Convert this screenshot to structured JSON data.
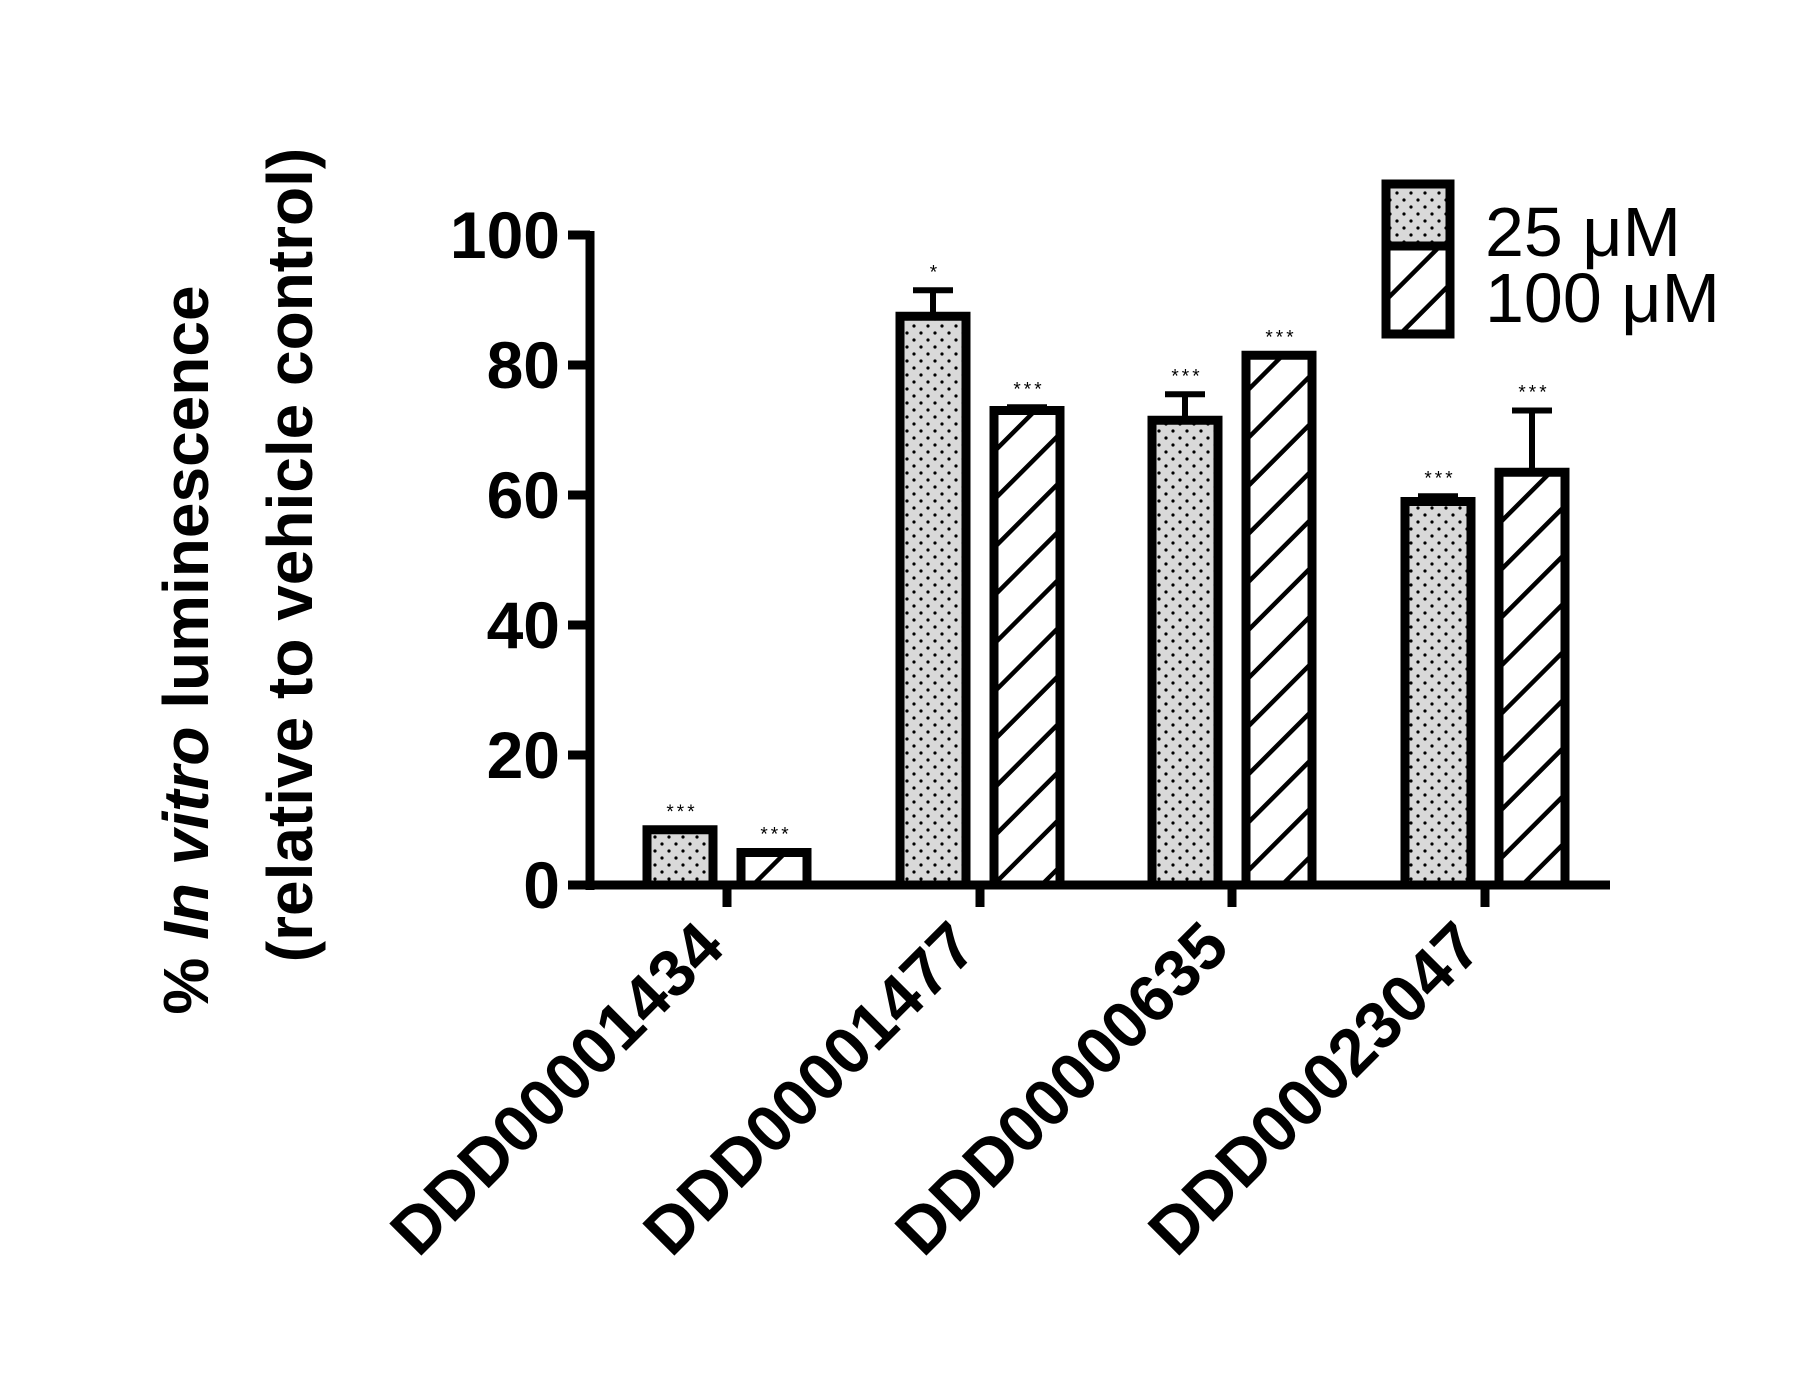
{
  "chart_data": {
    "type": "bar",
    "title": "",
    "ylabel_prefix": "% ",
    "ylabel_italic": "In vitro",
    "ylabel_suffix": " luminescence",
    "ylabel_line2": "(relative to vehicle control)",
    "xlabel": "",
    "ylim": [
      0,
      100
    ],
    "yticks": [
      "0",
      "20",
      "40",
      "60",
      "80",
      "100"
    ],
    "categories": [
      "DDD00001434",
      "DDD00001477",
      "DDD00000635",
      "DDD00023047"
    ],
    "legend_position": "top-right",
    "series": [
      {
        "name": "25 μM",
        "pattern": "dots",
        "fill_color": "#d9d9d9",
        "values": [
          8.5,
          87.5,
          71.5,
          59.0
        ],
        "errors": [
          0,
          4.0,
          4.0,
          0.8
        ],
        "significance": [
          "***",
          "*",
          "***",
          "***"
        ]
      },
      {
        "name": "100 μM",
        "pattern": "diagonal-hatch",
        "fill_color": "#ffffff",
        "values": [
          5.0,
          73.0,
          81.5,
          63.5
        ],
        "errors": [
          0,
          0.5,
          0,
          9.5
        ],
        "significance": [
          "***",
          "***",
          "***",
          "***"
        ]
      }
    ],
    "grid": false
  }
}
